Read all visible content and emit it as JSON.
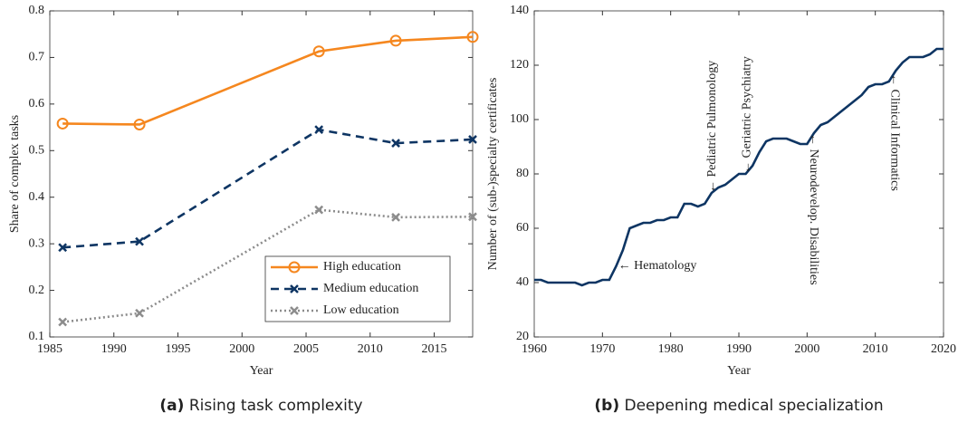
{
  "chart_data": [
    {
      "type": "line",
      "caption_label": "(a)",
      "caption": "Rising task complexity",
      "x_label": "Year",
      "y_label": "Share of complex tasks",
      "x": [
        1986,
        1992,
        2006,
        2012,
        2018
      ],
      "series": [
        {
          "name": "High education",
          "color": "#f5871f",
          "dash": "solid",
          "marker": "circle",
          "values": [
            0.558,
            0.556,
            0.713,
            0.736,
            0.744
          ]
        },
        {
          "name": "Medium education",
          "color": "#0e3563",
          "dash": "dashed",
          "marker": "x",
          "values": [
            0.292,
            0.305,
            0.545,
            0.516,
            0.524
          ]
        },
        {
          "name": "Low education",
          "color": "#8c8c8c",
          "dash": "dotted",
          "marker": "x",
          "values": [
            0.132,
            0.151,
            0.373,
            0.357,
            0.358
          ]
        }
      ],
      "xlim": [
        1985,
        2018
      ],
      "xticks": [
        1985,
        1990,
        1995,
        2000,
        2005,
        2010,
        2015
      ],
      "ylim": [
        0.1,
        0.8
      ],
      "yticks": [
        0.1,
        0.2,
        0.3,
        0.4,
        0.5,
        0.6,
        0.7,
        0.8
      ],
      "legend": "lower right"
    },
    {
      "type": "line",
      "caption_label": "(b)",
      "caption": "Deepening medical specialization",
      "x_label": "Year",
      "y_label": "Number of (sub-)specialty certificates",
      "x": [
        1960,
        1961,
        1962,
        1963,
        1964,
        1965,
        1966,
        1967,
        1968,
        1969,
        1970,
        1971,
        1972,
        1973,
        1974,
        1975,
        1976,
        1977,
        1978,
        1979,
        1980,
        1981,
        1982,
        1983,
        1984,
        1985,
        1986,
        1987,
        1988,
        1989,
        1990,
        1991,
        1992,
        1993,
        1994,
        1995,
        1996,
        1997,
        1998,
        1999,
        2000,
        2001,
        2002,
        2003,
        2004,
        2005,
        2006,
        2007,
        2008,
        2009,
        2010,
        2011,
        2012,
        2013,
        2014,
        2015,
        2016,
        2017,
        2018,
        2019,
        2020
      ],
      "series": [
        {
          "color": "#0e3563",
          "dash": "solid",
          "marker": "none",
          "values": [
            41,
            41,
            40,
            40,
            40,
            40,
            40,
            39,
            40,
            40,
            41,
            41,
            46,
            52,
            60,
            61,
            62,
            62,
            63,
            63,
            64,
            64,
            69,
            69,
            68,
            69,
            73,
            75,
            76,
            78,
            80,
            80,
            83,
            88,
            92,
            93,
            93,
            93,
            92,
            91,
            91,
            95,
            98,
            99,
            101,
            103,
            105,
            107,
            109,
            112,
            113,
            113,
            114,
            118,
            121,
            123,
            123,
            123,
            124,
            126,
            126
          ]
        }
      ],
      "annotations": [
        "← Hematology",
        "← Pediatric Pulmonology",
        "← Geriatric Psychiatry",
        "← Neurodevelop. Disabilities",
        "← Clinical Informatics"
      ],
      "xlim": [
        1960,
        2020
      ],
      "xticks": [
        1960,
        1970,
        1980,
        1990,
        2000,
        2010,
        2020
      ],
      "ylim": [
        20,
        140
      ],
      "yticks": [
        20,
        40,
        60,
        80,
        100,
        120,
        140
      ]
    }
  ]
}
